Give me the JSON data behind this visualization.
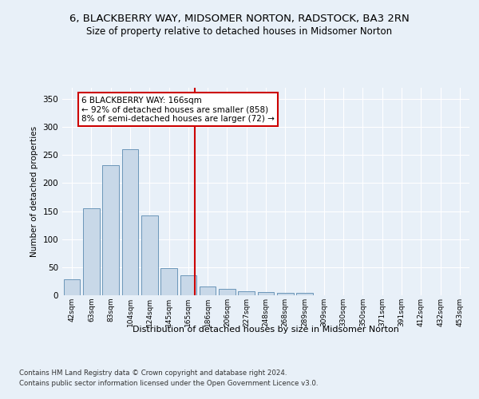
{
  "title_line1": "6, BLACKBERRY WAY, MIDSOMER NORTON, RADSTOCK, BA3 2RN",
  "title_line2": "Size of property relative to detached houses in Midsomer Norton",
  "xlabel": "Distribution of detached houses by size in Midsomer Norton",
  "ylabel": "Number of detached properties",
  "footnote1": "Contains HM Land Registry data © Crown copyright and database right 2024.",
  "footnote2": "Contains public sector information licensed under the Open Government Licence v3.0.",
  "bar_labels": [
    "42sqm",
    "63sqm",
    "83sqm",
    "104sqm",
    "124sqm",
    "145sqm",
    "165sqm",
    "186sqm",
    "206sqm",
    "227sqm",
    "248sqm",
    "268sqm",
    "289sqm",
    "309sqm",
    "330sqm",
    "350sqm",
    "371sqm",
    "391sqm",
    "412sqm",
    "432sqm",
    "453sqm"
  ],
  "bar_values": [
    28,
    155,
    232,
    260,
    143,
    48,
    35,
    16,
    11,
    7,
    5,
    4,
    4,
    0,
    0,
    0,
    0,
    0,
    0,
    0,
    0
  ],
  "bar_color": "#c8d8e8",
  "bar_edge_color": "#5a8ab0",
  "vline_index": 6,
  "vline_color": "#cc0000",
  "annotation_text": "6 BLACKBERRY WAY: 166sqm\n← 92% of detached houses are smaller (858)\n8% of semi-detached houses are larger (72) →",
  "annotation_box_color": "#ffffff",
  "annotation_box_edge": "#cc0000",
  "ylim": [
    0,
    370
  ],
  "yticks": [
    0,
    50,
    100,
    150,
    200,
    250,
    300,
    350
  ],
  "bg_color": "#e8f0f8",
  "plot_bg_color": "#e8f0f8"
}
